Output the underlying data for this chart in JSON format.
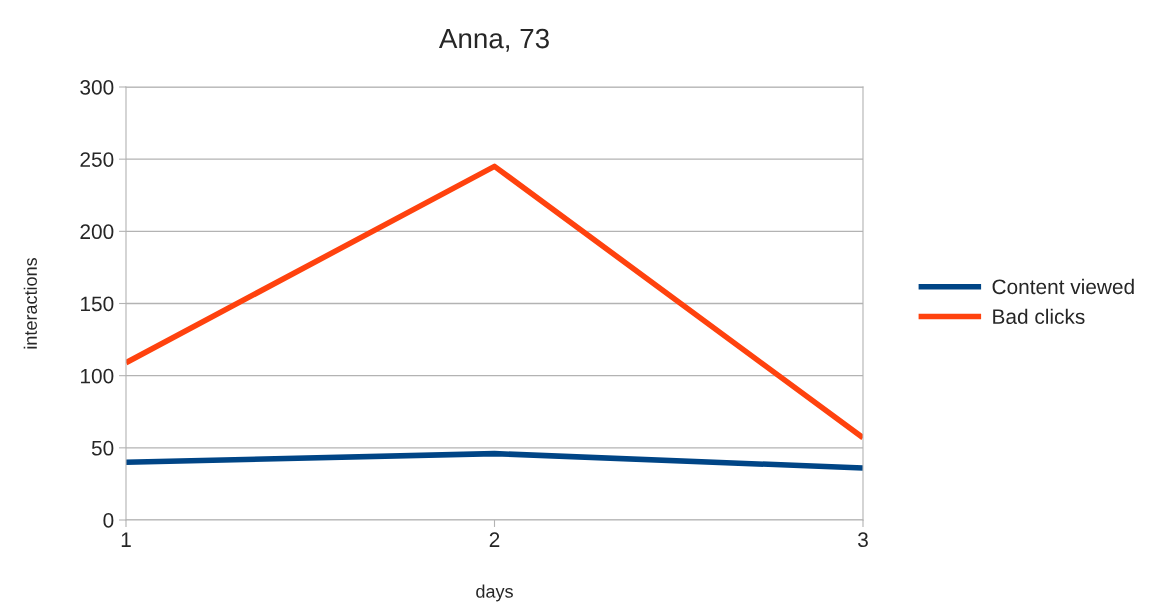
{
  "chart_data": {
    "type": "line",
    "title": "Anna, 73",
    "xlabel": "days",
    "ylabel": "interactions",
    "x": [
      1,
      2,
      3
    ],
    "xlim": [
      1,
      3
    ],
    "xticks": [
      1,
      2,
      3
    ],
    "ylim": [
      0,
      300
    ],
    "yticks": [
      0,
      50,
      100,
      150,
      200,
      250,
      300
    ],
    "grid": "y",
    "legend": "right",
    "marker": "none",
    "line_style": "solid",
    "series": [
      {
        "name": "Content viewed",
        "color": "#004586",
        "values": [
          40,
          46,
          36
        ]
      },
      {
        "name": "Bad clicks",
        "color": "#ff420e",
        "values": [
          109,
          245,
          57
        ]
      }
    ]
  }
}
